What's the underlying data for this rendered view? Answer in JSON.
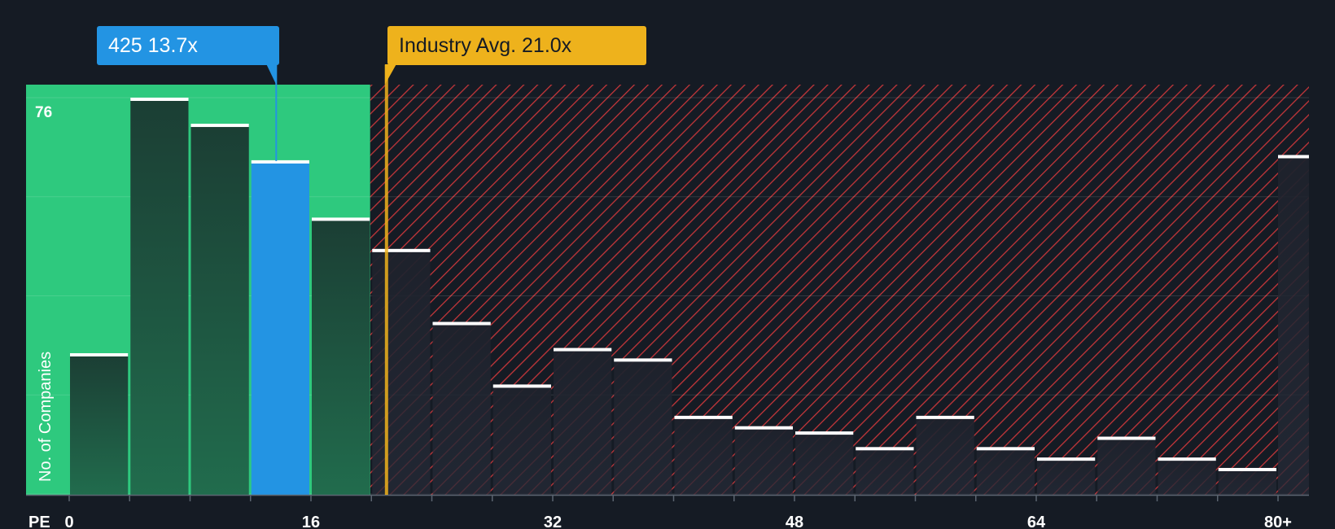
{
  "chart_data": {
    "type": "bar",
    "xlabel": "PE",
    "ylabel": "No. of Companies",
    "x_ticks": [
      "0",
      "16",
      "32",
      "48",
      "64",
      "80+"
    ],
    "y_max_label": "76",
    "ylim": [
      0,
      76
    ],
    "bin_edges": [
      0,
      4,
      8,
      12,
      16,
      20,
      24,
      28,
      32,
      36,
      40,
      44,
      48,
      52,
      56,
      60,
      64,
      68,
      72,
      76,
      80
    ],
    "values": [
      27,
      76,
      71,
      64,
      53,
      47,
      33,
      21,
      28,
      26,
      15,
      13,
      12,
      9,
      15,
      9,
      7,
      11,
      7,
      5,
      65
    ],
    "highlight_bin_index": 3,
    "company": {
      "label": "425 13.7x",
      "pe": 13.7
    },
    "industry": {
      "label": "Industry Avg. 21.0x",
      "pe": 21.0
    },
    "colors": {
      "background": "#151b24",
      "undervalued_zone": "#2ec97e",
      "overvalued_hatch": "#d63c3c",
      "bar_fill": "#1e4a3c",
      "bar_fill_red_zone": "#1f2530",
      "highlight_bar": "#2394e3",
      "company_marker": "#2394e3",
      "industry_marker": "#eeb21c",
      "axis_text": "#ffffff"
    }
  }
}
